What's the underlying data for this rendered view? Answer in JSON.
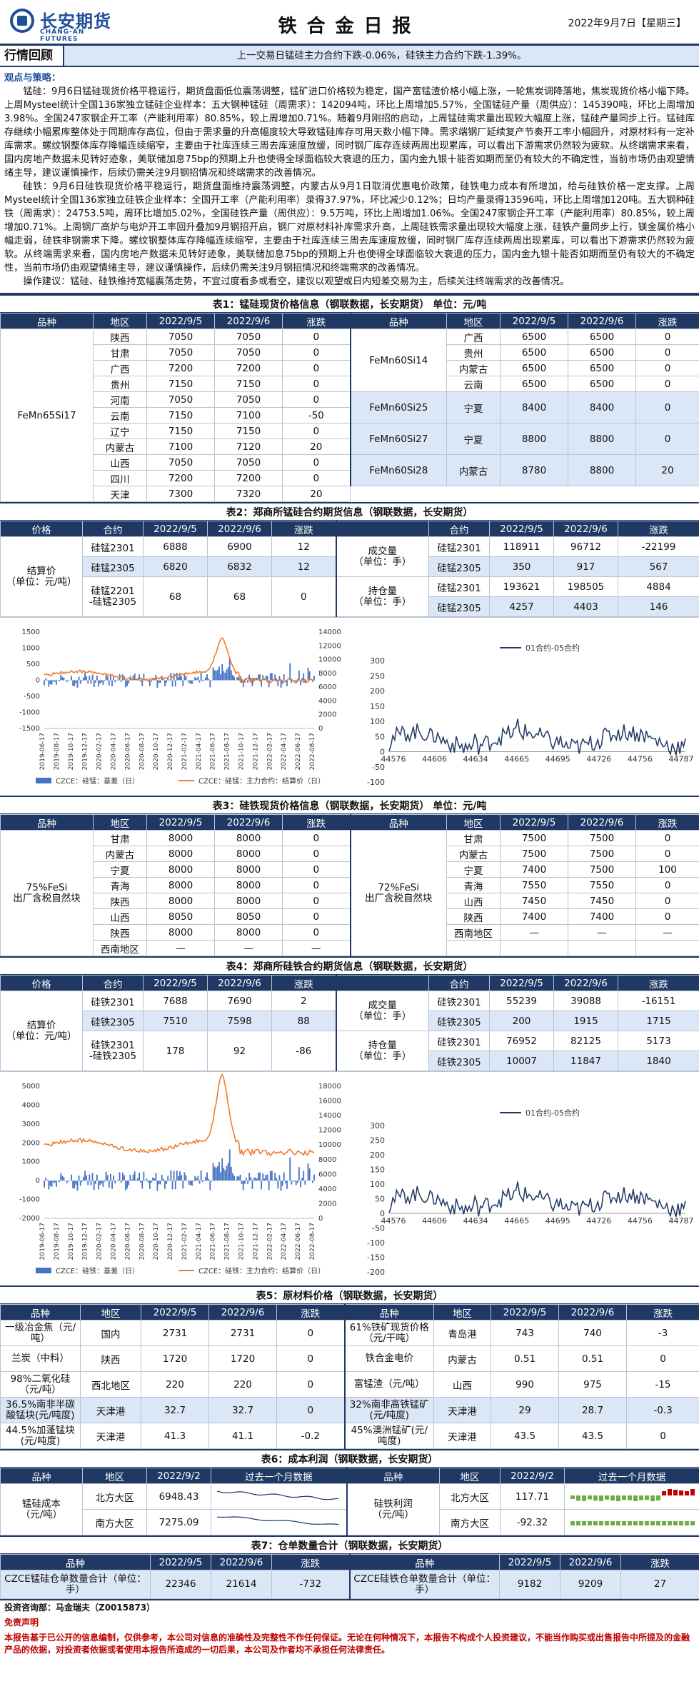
{
  "header": {
    "logo_cn": "长安期货",
    "logo_en": "CHANG-AN FUTURES",
    "title": "铁合金日报",
    "date": "2022年9月7日【星期三】"
  },
  "review": {
    "label": "行情回顾",
    "text": "上一交易日锰硅主力合约下跌-0.06%，硅铁主力合约下跌-1.39%。"
  },
  "strategy": {
    "heading": "观点与策略：",
    "p1": "锰硅：9月6日锰硅现货价格平稳运行，期货盘面低位震荡调整，锰矿进口价格较为稳定，国产富锰渣价格小幅上涨，一轮焦炭调降落地，焦炭现货价格小幅下降。上周Mysteel统计全国136家独立锰硅企业样本：五大钢种锰硅（周需求）：142094吨，环比上周增加5.57%，全国锰硅产量（周供应）：145390吨，环比上周增加3.98%。全国247家钢企开工率（产能利用率）80.85%，较上周增加0.71%。随着9月刚招的启动，上周锰硅需求量出现较大幅度上涨，锰硅产量同步上行。锰硅库存继续小幅累库整体处于同期库存高位，但由于需求量的升高幅度较大导致锰硅库存可用天数小幅下降。需求端钢厂延续复产节奏开工率小幅回升，对原材料有一定补库需求。螺纹钢整体库存降幅连续缩窄，主要由于社库连续三周去库速度放缓，同时钢厂库存连续两周出现累库，可以看出下游需求仍然较为疲软。从终端需求来看，国内房地产数据未见转好迹象，美联储加息75bp的预期上升也使得全球面临较大衰退的压力，国内金九银十能否如期而至仍有较大的不确定性，当前市场仍由观望情绪主导，建议谨慎操作，后续仍需关注9月钢招情况和终端需求的改善情况。",
    "p2": "硅铁：9月6日硅铁现货价格平稳运行，期货盘面维持震荡调整，内蒙古从9月1日取消优惠电价政策，硅铁电力成本有所增加，给与硅铁价格一定支撑。上周Mysteel统计全国136家独立硅铁企业样本：全国开工率（产能利用率）录得37.97%，环比减少0.12%；日均产量录得13596吨，环比上周增加120吨。五大钢种硅铁（周需求）：24753.5吨，周环比增加5.02%，全国硅铁产量（周供应）：9.5万吨，环比上周增加1.06%。全国247家钢企开工率（产能利用率）80.85%，较上周增加0.71%。上周钢厂高炉与电炉开工率回升叠加9月钢招开启，钢厂对原材料补库需求升高，上周硅铁需求量出现较大幅度上涨，硅铁产量同步上行，镁金属价格小幅走弱，硅铁非钢需求下降。螺纹钢整体库存降幅连续缩窄，主要由于社库连续三周去库速度放缓，同时钢厂库存连续两周出现累库，可以看出下游需求仍然较为疲软。从终端需求来看，国内房地产数据未见转好迹象，美联储加息75bp的预期上升也使得全球面临较大衰退的压力，国内金九银十能否如期而至仍有较大的不确定性，当前市场仍由观望情绪主导，建议谨慎操作，后续仍需关注9月钢招情况和终端需求的改善情况。",
    "p3": "操作建议：锰硅、硅铁维持宽幅震荡走势，不宜过度看多或看空，建议以观望或日内短差交易为主，后续关注终端需求的改善情况。"
  },
  "t1": {
    "caption": "表1：锰硅现货价格信息（钢联数据，长安期货）  单位：元/吨",
    "headers": [
      "品种",
      "地区",
      "2022/9/5",
      "2022/9/6",
      "涨跌"
    ],
    "left_product": "FeMn65Si17",
    "left": [
      [
        "陕西",
        "7050",
        "7050",
        "0"
      ],
      [
        "甘肃",
        "7050",
        "7050",
        "0"
      ],
      [
        "广西",
        "7200",
        "7200",
        "0"
      ],
      [
        "贵州",
        "7150",
        "7150",
        "0"
      ],
      [
        "河南",
        "7050",
        "7050",
        "0"
      ],
      [
        "云南",
        "7150",
        "7100",
        "-50"
      ],
      [
        "辽宁",
        "7150",
        "7150",
        "0"
      ],
      [
        "内蒙古",
        "7100",
        "7120",
        "20"
      ],
      [
        "山西",
        "7050",
        "7050",
        "0"
      ],
      [
        "四川",
        "7200",
        "7200",
        "0"
      ],
      [
        "天津",
        "7300",
        "7320",
        "20"
      ]
    ],
    "right": [
      {
        "product": "FeMn60Si14",
        "rows": [
          [
            "广西",
            "6500",
            "6500",
            "0"
          ],
          [
            "贵州",
            "6500",
            "6500",
            "0"
          ],
          [
            "内蒙古",
            "6500",
            "6500",
            "0"
          ],
          [
            "云南",
            "6500",
            "6500",
            "0"
          ]
        ]
      },
      {
        "product": "FeMn60Si25",
        "rows": [
          [
            "宁夏",
            "8400",
            "8400",
            "0"
          ]
        ]
      },
      {
        "product": "FeMn60Si27",
        "rows": [
          [
            "宁夏",
            "8800",
            "8800",
            "0"
          ]
        ]
      },
      {
        "product": "FeMn60Si28",
        "rows": [
          [
            "内蒙古",
            "8780",
            "8800",
            "20"
          ]
        ]
      }
    ]
  },
  "t2": {
    "caption": "表2：郑商所锰硅合约期货信息（钢联数据，长安期货）",
    "headers": [
      "价格",
      "合约",
      "2022/9/5",
      "2022/9/6",
      "涨跌",
      "合约",
      "2022/9/5",
      "2022/9/6",
      "涨跌"
    ],
    "label": "结算价\n（单位：元/吨）",
    "rows": [
      [
        "硅锰2301",
        "6888",
        "6900",
        "12"
      ],
      [
        "硅锰2305",
        "6820",
        "6832",
        "12"
      ],
      [
        "硅锰2201\n-硅锰2305",
        "68",
        "68",
        "0"
      ]
    ],
    "vol_label": "成交量\n（单位：手）",
    "oi_label": "持仓量\n（单位：手）",
    "vol": [
      [
        "硅锰2301",
        "118911",
        "96712",
        "-22199"
      ],
      [
        "硅锰2305",
        "350",
        "917",
        "567"
      ]
    ],
    "oi": [
      [
        "硅锰2301",
        "193621",
        "198505",
        "4884"
      ],
      [
        "硅锰2305",
        "4257",
        "4403",
        "146"
      ]
    ]
  },
  "c2": {
    "left_y": [
      "1500",
      "1000",
      "500",
      "0",
      "-500",
      "-1000",
      "-1500"
    ],
    "right_y": [
      "14000",
      "12000",
      "10000",
      "8000",
      "6000",
      "4000",
      "2000",
      "0"
    ],
    "dates": [
      "2019-06-17",
      "2019-08-17",
      "2019-10-17",
      "2019-12-17",
      "2020-02-17",
      "2020-04-17",
      "2020-06-17",
      "2020-08-17",
      "2020-10-17",
      "2020-12-17",
      "2021-02-17",
      "2021-04-17",
      "2021-06-17",
      "2021-08-17",
      "2021-10-17",
      "2021-12-17",
      "2022-02-17",
      "2022-04-17",
      "2022-06-17",
      "2022-08-17"
    ],
    "legend_basis": "CZCE：硅锰：基差（日）",
    "legend_price": "CZCE：硅锰：主力合约：结算价（日）",
    "spread_legend": "01合约-05合约",
    "spread_y": [
      "300",
      "250",
      "200",
      "150",
      "100",
      "50",
      "0",
      "-50",
      "-100"
    ],
    "spread_x": [
      "44576",
      "44606",
      "44634",
      "44665",
      "44695",
      "44726",
      "44756",
      "44787"
    ]
  },
  "t3": {
    "caption": "表3：硅铁现货价格信息（钢联数据，长安期货）  单位：元/吨",
    "headers": [
      "品种",
      "地区",
      "2022/9/5",
      "2022/9/6",
      "涨跌"
    ],
    "left_product": "75%FeSi\n出厂含税自然块",
    "right_product": "72%FeSi\n出厂含税自然块",
    "left": [
      [
        "甘肃",
        "8000",
        "8000",
        "0"
      ],
      [
        "内蒙古",
        "8000",
        "8000",
        "0"
      ],
      [
        "宁夏",
        "8000",
        "8000",
        "0"
      ],
      [
        "青海",
        "8000",
        "8000",
        "0"
      ],
      [
        "陕西",
        "8000",
        "8000",
        "0"
      ],
      [
        "山西",
        "8050",
        "8050",
        "0"
      ],
      [
        "陕西",
        "8000",
        "8000",
        "0"
      ],
      [
        "西南地区",
        "—",
        "—",
        "—"
      ]
    ],
    "right": [
      [
        "甘肃",
        "7500",
        "7500",
        "0"
      ],
      [
        "内蒙古",
        "7500",
        "7500",
        "0"
      ],
      [
        "宁夏",
        "7400",
        "7500",
        "100"
      ],
      [
        "青海",
        "7550",
        "7550",
        "0"
      ],
      [
        "山西",
        "7450",
        "7450",
        "0"
      ],
      [
        "陕西",
        "7400",
        "7400",
        "0"
      ],
      [
        "西南地区",
        "—",
        "—",
        "—"
      ]
    ]
  },
  "t4": {
    "caption": "表4：郑商所硅铁合约期货信息（钢联数据，长安期货）",
    "headers": [
      "价格",
      "合约",
      "2022/9/5",
      "2022/9/6",
      "涨跌",
      "合约",
      "2022/9/5",
      "2022/9/6",
      "涨跌"
    ],
    "label": "结算价\n（单位：元/吨）",
    "rows": [
      [
        "硅铁2301",
        "7688",
        "7690",
        "2"
      ],
      [
        "硅铁2305",
        "7510",
        "7598",
        "88"
      ],
      [
        "硅铁2301\n-硅铁2305",
        "178",
        "92",
        "-86"
      ]
    ],
    "vol_label": "成交量\n（单位：手）",
    "oi_label": "持仓量\n（单位：手）",
    "vol": [
      [
        "硅铁2301",
        "55239",
        "39088",
        "-16151"
      ],
      [
        "硅铁2305",
        "200",
        "1915",
        "1715"
      ]
    ],
    "oi": [
      [
        "硅铁2301",
        "76952",
        "82125",
        "5173"
      ],
      [
        "硅铁2305",
        "10007",
        "11847",
        "1840"
      ]
    ]
  },
  "c4": {
    "left_y": [
      "5000",
      "4000",
      "3000",
      "2000",
      "1000",
      "0",
      "-1000",
      "-2000"
    ],
    "right_y": [
      "18000",
      "16000",
      "14000",
      "12000",
      "10000",
      "8000",
      "6000",
      "4000",
      "2000",
      "0"
    ],
    "dates": [
      "2019-06-17",
      "2019-08-17",
      "2019-10-17",
      "2019-12-17",
      "2020-02-17",
      "2020-04-17",
      "2020-06-17",
      "2020-08-17",
      "2020-10-17",
      "2020-12-17",
      "2021-02-17",
      "2021-04-17",
      "2021-06-17",
      "2021-08-17",
      "2021-10-17",
      "2021-12-17",
      "2022-02-17",
      "2022-04-17",
      "2022-06-17",
      "2022-08-17"
    ],
    "legend_basis": "CZCE：硅铁：基差（日）",
    "legend_price": "CZCE：硅铁：主力合约：结算价（日）",
    "spread_legend": "01合约-05合约",
    "spread_y": [
      "300",
      "250",
      "200",
      "150",
      "100",
      "50",
      "0",
      "-50",
      "-100",
      "-150",
      "-200"
    ],
    "spread_x": [
      "44576",
      "44606",
      "44634",
      "44665",
      "44695",
      "44726",
      "44756",
      "44787"
    ]
  },
  "t5": {
    "caption": "表5：原材料价格（钢联数据，长安期货）",
    "headers": [
      "品种",
      "地区",
      "2022/9/5",
      "2022/9/6",
      "涨跌",
      "品种",
      "地区",
      "2022/9/5",
      "2022/9/6",
      "涨跌"
    ],
    "rows": [
      [
        "一级冶金焦（元/吨）",
        "国内",
        "2731",
        "2731",
        "0",
        "61%铁矿现货价格（元/干吨）",
        "青岛港",
        "743",
        "740",
        "-3"
      ],
      [
        "兰炭（中料）",
        "陕西",
        "1720",
        "1720",
        "0",
        "铁合金电价",
        "内蒙古",
        "0.51",
        "0.51",
        "0"
      ],
      [
        "98%二氧化硅（元/吨）",
        "西北地区",
        "220",
        "220",
        "0",
        "富锰渣（元/吨）",
        "山西",
        "990",
        "975",
        "-15"
      ],
      [
        "36.5%南非半碳酸锰块(元/吨度)",
        "天津港",
        "32.7",
        "32.7",
        "0",
        "32%南非高铁锰矿(元/吨度)",
        "天津港",
        "29",
        "28.7",
        "-0.3"
      ],
      [
        "44.5%加蓬锰块(元/吨度)",
        "天津港",
        "41.3",
        "41.1",
        "-0.2",
        "45%澳洲锰矿(元/吨度)",
        "天津港",
        "43.5",
        "43.5",
        "0"
      ]
    ]
  },
  "t6": {
    "caption": "表6：成本利润（钢联数据，长安期货）",
    "headers": [
      "品种",
      "地区",
      "2022/9/2",
      "过去一个月数据",
      "品种",
      "地区",
      "2022/9/2",
      "过去一个月数据"
    ],
    "left_label": "锰硅成本\n（元/吨）",
    "right_label": "硅铁利润\n（元/吨）",
    "left": [
      [
        "北方大区",
        "6948.43"
      ],
      [
        "南方大区",
        "7275.09"
      ]
    ],
    "right": [
      [
        "北方大区",
        "117.71"
      ],
      [
        "南方大区",
        "-92.32"
      ]
    ]
  },
  "t7": {
    "caption": "表7：仓单数量合计（钢联数据，长安期货）",
    "headers": [
      "品种",
      "2022/9/5",
      "2022/9/6",
      "涨跌",
      "品种",
      "2022/9/5",
      "2022/9/6",
      "涨跌"
    ],
    "left": [
      "CZCE锰硅仓单数量合计（单位：手）",
      "22346",
      "21614",
      "-732"
    ],
    "right": [
      "CZCE硅铁仓单数量合计（单位：手）",
      "9182",
      "9209",
      "27"
    ]
  },
  "footer": {
    "consultant": "投资咨询部：马金瑞夫（Z0015873）",
    "disc_title": "免责声明",
    "disc": "本报告基于已公开的信息编制，仅供参考，本公司对信息的准确性及完整性不作任何保证。无论在何种情况下，本报告不构成个人投资建议，不能当作购买或出售报告中所提及的金融产品的依据，对投资者依据或者使用本报告所造成的一切后果，本公司及作者均不承担任何法律责任。"
  },
  "colors": {
    "navy": "#1f3864",
    "basis_bar": "#4472c4",
    "price_line": "#ed7d31",
    "spread_line": "#1f3864",
    "spark_pos": "#70ad47",
    "spark_neg": "#c00000"
  }
}
